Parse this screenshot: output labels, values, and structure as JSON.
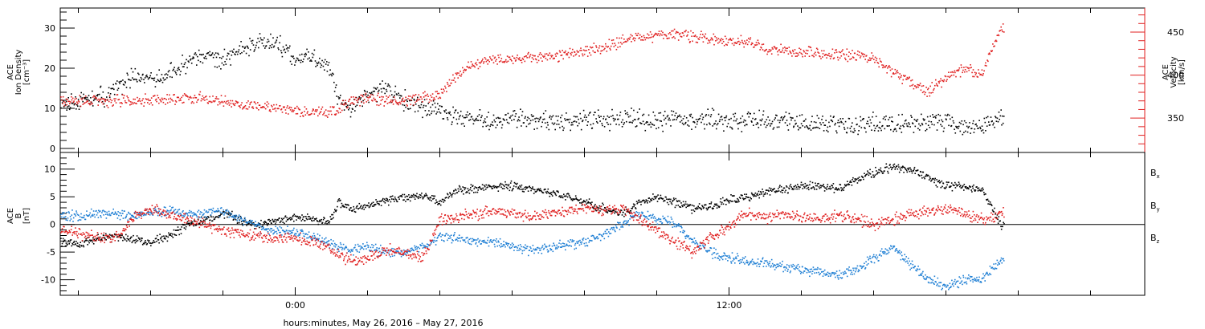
{
  "chart_data": [
    {
      "type": "scatter",
      "panel": "plasma",
      "left_axis": {
        "label_lines": [
          "ACE",
          "Ion Density",
          "[cm⁻³]"
        ],
        "ylim": [
          -1,
          35
        ],
        "ticks": [
          0,
          10,
          20,
          30
        ],
        "color": "#000000"
      },
      "right_axis": {
        "label_lines": [
          "ACE",
          "Velocity",
          "[km/s]"
        ],
        "ylim": [
          310,
          478
        ],
        "ticks": [
          350,
          400,
          450
        ],
        "color": "#e02020"
      },
      "series": [
        {
          "axis": "left",
          "color": "#000000",
          "points": [
            [
              -6.5,
              11
            ],
            [
              -6,
              12
            ],
            [
              -5.5,
              12.5
            ],
            [
              -5,
              15
            ],
            [
              -4.5,
              18
            ],
            [
              -4,
              17
            ],
            [
              -3.5,
              19
            ],
            [
              -3,
              21
            ],
            [
              -2.5,
              23
            ],
            [
              -2,
              22
            ],
            [
              -1.5,
              25
            ],
            [
              -1,
              27
            ],
            [
              -0.5,
              26
            ],
            [
              0,
              22
            ],
            [
              0.3,
              24
            ],
            [
              0.6,
              21
            ],
            [
              0.9,
              22
            ],
            [
              1.2,
              12
            ],
            [
              1.5,
              10
            ],
            [
              2,
              14
            ],
            [
              2.5,
              15
            ],
            [
              3,
              12
            ],
            [
              3.5,
              10
            ],
            [
              4,
              9
            ],
            [
              4.5,
              8
            ],
            [
              5,
              7
            ],
            [
              5.5,
              7
            ],
            [
              6,
              7.5
            ],
            [
              7,
              7
            ],
            [
              8,
              7
            ],
            [
              9,
              7.5
            ],
            [
              10,
              7
            ],
            [
              11,
              7.5
            ],
            [
              12,
              7
            ],
            [
              13,
              7
            ],
            [
              14,
              6.5
            ],
            [
              15,
              6
            ],
            [
              16,
              6.5
            ],
            [
              17,
              6
            ],
            [
              17.5,
              7
            ],
            [
              18,
              6.5
            ],
            [
              18.5,
              6
            ],
            [
              19,
              6
            ],
            [
              19.5,
              7
            ]
          ]
        },
        {
          "axis": "right",
          "color": "#e02020",
          "points": [
            [
              -6.5,
              370
            ],
            [
              -6,
              370
            ],
            [
              -5,
              371
            ],
            [
              -4,
              371
            ],
            [
              -3.5,
              372
            ],
            [
              -3,
              374
            ],
            [
              -2.5,
              374
            ],
            [
              -2,
              370
            ],
            [
              -1.5,
              366
            ],
            [
              -1,
              364
            ],
            [
              -0.5,
              362
            ],
            [
              0,
              360
            ],
            [
              0.5,
              358
            ],
            [
              0.9,
              357
            ],
            [
              1.2,
              362
            ],
            [
              1.5,
              370
            ],
            [
              2,
              373
            ],
            [
              2.5,
              372
            ],
            [
              3,
              370
            ],
            [
              3.5,
              374
            ],
            [
              4,
              378
            ],
            [
              4.5,
              402
            ],
            [
              5,
              415
            ],
            [
              5.5,
              418
            ],
            [
              6,
              420
            ],
            [
              6.5,
              420
            ],
            [
              7,
              422
            ],
            [
              7.5,
              425
            ],
            [
              8,
              428
            ],
            [
              8.5,
              432
            ],
            [
              9,
              440
            ],
            [
              9.5,
              445
            ],
            [
              10,
              447
            ],
            [
              10.5,
              448
            ],
            [
              11,
              445
            ],
            [
              11.5,
              443
            ],
            [
              12,
              440
            ],
            [
              12.5,
              438
            ],
            [
              13,
              432
            ],
            [
              14,
              428
            ],
            [
              15,
              425
            ],
            [
              16,
              420
            ],
            [
              16.5,
              405
            ],
            [
              17,
              393
            ],
            [
              17.5,
              382
            ],
            [
              18,
              398
            ],
            [
              18.5,
              408
            ],
            [
              19,
              402
            ],
            [
              19.5,
              455
            ]
          ]
        }
      ]
    },
    {
      "type": "scatter",
      "panel": "magnetic-field",
      "left_axis": {
        "label_lines": [
          "ACE",
          "B",
          "[nT]"
        ],
        "ylim": [
          -12.8,
          13
        ],
        "ticks": [
          -10,
          -5,
          0,
          5,
          10
        ],
        "color": "#000000"
      },
      "zero_line": true,
      "legend": [
        {
          "label": "B",
          "sub": "x",
          "color": "#000000"
        },
        {
          "label": "B",
          "sub": "y",
          "color": "#1f7fd4"
        },
        {
          "label": "B",
          "sub": "z",
          "color": "#e02020"
        }
      ],
      "series": [
        {
          "name": "Bx",
          "color": "#000000",
          "points": [
            [
              -6.5,
              -3
            ],
            [
              -6,
              -3.5
            ],
            [
              -5.5,
              -2.5
            ],
            [
              -5,
              -2
            ],
            [
              -4.5,
              -2.5
            ],
            [
              -4,
              -3
            ],
            [
              -3.5,
              -2
            ],
            [
              -3,
              0
            ],
            [
              -2.5,
              1
            ],
            [
              -2,
              2
            ],
            [
              -1.5,
              1
            ],
            [
              -1,
              0
            ],
            [
              -0.5,
              1
            ],
            [
              0,
              1.5
            ],
            [
              0.5,
              1
            ],
            [
              0.9,
              0.5
            ],
            [
              1.2,
              4
            ],
            [
              1.5,
              3
            ],
            [
              2,
              3.5
            ],
            [
              2.5,
              4.5
            ],
            [
              3,
              5
            ],
            [
              3.5,
              5.5
            ],
            [
              4,
              4
            ],
            [
              4.5,
              6.5
            ],
            [
              5,
              6.5
            ],
            [
              5.5,
              7
            ],
            [
              6,
              7
            ],
            [
              6.5,
              6.5
            ],
            [
              7,
              6
            ],
            [
              7.5,
              5
            ],
            [
              8,
              4
            ],
            [
              8.5,
              3
            ],
            [
              9,
              2
            ],
            [
              9.5,
              4
            ],
            [
              10,
              5
            ],
            [
              10.5,
              4
            ],
            [
              11,
              3
            ],
            [
              11.5,
              3.5
            ],
            [
              12,
              4.5
            ],
            [
              12.5,
              5
            ],
            [
              13,
              6
            ],
            [
              13.5,
              6.5
            ],
            [
              14,
              7
            ],
            [
              14.5,
              7
            ],
            [
              15,
              6.5
            ],
            [
              15.5,
              8
            ],
            [
              16,
              9.5
            ],
            [
              16.5,
              10.5
            ],
            [
              17,
              10
            ],
            [
              17.5,
              8.5
            ],
            [
              18,
              7
            ],
            [
              18.5,
              7
            ],
            [
              19,
              6.5
            ],
            [
              19.5,
              0
            ]
          ]
        },
        {
          "name": "By",
          "color": "#1f7fd4",
          "points": [
            [
              -6.5,
              2
            ],
            [
              -6,
              1.5
            ],
            [
              -5.5,
              2
            ],
            [
              -5,
              2
            ],
            [
              -4.5,
              1.5
            ],
            [
              -4,
              2.5
            ],
            [
              -3.5,
              2.5
            ],
            [
              -3,
              2
            ],
            [
              -2.5,
              2
            ],
            [
              -2,
              2.5
            ],
            [
              -1.5,
              1
            ],
            [
              -1,
              -0.5
            ],
            [
              -0.5,
              -1
            ],
            [
              0,
              -1.5
            ],
            [
              0.5,
              -2
            ],
            [
              0.9,
              -3
            ],
            [
              1.2,
              -4
            ],
            [
              1.5,
              -4.5
            ],
            [
              2,
              -4
            ],
            [
              2.5,
              -5
            ],
            [
              3,
              -5
            ],
            [
              3.5,
              -4
            ],
            [
              4,
              -2
            ],
            [
              4.5,
              -2.5
            ],
            [
              5,
              -3
            ],
            [
              5.5,
              -3
            ],
            [
              6,
              -4
            ],
            [
              6.5,
              -4.5
            ],
            [
              7,
              -4
            ],
            [
              7.5,
              -3.5
            ],
            [
              8,
              -3
            ],
            [
              8.5,
              -2
            ],
            [
              9,
              0
            ],
            [
              9.5,
              2
            ],
            [
              10,
              1
            ],
            [
              10.5,
              0.5
            ],
            [
              11,
              -3
            ],
            [
              11.5,
              -5
            ],
            [
              12,
              -6
            ],
            [
              12.5,
              -6.5
            ],
            [
              13,
              -7
            ],
            [
              13.5,
              -7.5
            ],
            [
              14,
              -8
            ],
            [
              14.5,
              -8.5
            ],
            [
              15,
              -9
            ],
            [
              15.5,
              -8
            ],
            [
              16,
              -6
            ],
            [
              16.5,
              -4
            ],
            [
              17,
              -7
            ],
            [
              17.5,
              -10
            ],
            [
              18,
              -11
            ],
            [
              18.5,
              -10
            ],
            [
              19,
              -9.5
            ],
            [
              19.5,
              -6.5
            ]
          ]
        },
        {
          "name": "Bz",
          "color": "#e02020",
          "points": [
            [
              -6.5,
              -1
            ],
            [
              -6,
              -1.5
            ],
            [
              -5.5,
              -2
            ],
            [
              -5,
              -2.5
            ],
            [
              -4.5,
              1
            ],
            [
              -4,
              3
            ],
            [
              -3.5,
              2
            ],
            [
              -3,
              1
            ],
            [
              -2.5,
              0
            ],
            [
              -2,
              -1
            ],
            [
              -1.5,
              -1.5
            ],
            [
              -1,
              -2
            ],
            [
              -0.5,
              -2.5
            ],
            [
              0,
              -2.5
            ],
            [
              0.5,
              -3
            ],
            [
              0.9,
              -4
            ],
            [
              1.2,
              -5.5
            ],
            [
              1.5,
              -6.5
            ],
            [
              2,
              -6
            ],
            [
              2.5,
              -4.5
            ],
            [
              3,
              -5
            ],
            [
              3.5,
              -6
            ],
            [
              4,
              1
            ],
            [
              4.5,
              1.5
            ],
            [
              5,
              2
            ],
            [
              5.5,
              2.5
            ],
            [
              6,
              2
            ],
            [
              6.5,
              1.5
            ],
            [
              7,
              2
            ],
            [
              7.5,
              2.5
            ],
            [
              8,
              3
            ],
            [
              8.5,
              2.5
            ],
            [
              9,
              3
            ],
            [
              9.5,
              1
            ],
            [
              10,
              -1
            ],
            [
              10.5,
              -3
            ],
            [
              11,
              -5
            ],
            [
              11.5,
              -2
            ],
            [
              12,
              0
            ],
            [
              12.5,
              2
            ],
            [
              13,
              1
            ],
            [
              13.5,
              2
            ],
            [
              14,
              1.5
            ],
            [
              14.5,
              1
            ],
            [
              15,
              2
            ],
            [
              15.5,
              1
            ],
            [
              16,
              0
            ],
            [
              16.5,
              1
            ],
            [
              17,
              2
            ],
            [
              17.5,
              2.5
            ],
            [
              18,
              3
            ],
            [
              18.5,
              2
            ],
            [
              19,
              1
            ],
            [
              19.5,
              2
            ]
          ]
        }
      ]
    }
  ],
  "x_axis": {
    "xlim": [
      -6.5,
      23.5
    ],
    "tick_labels": [
      {
        "x": 0,
        "text": "0:00"
      },
      {
        "x": 12,
        "text": "12:00"
      }
    ],
    "minor_step": 2,
    "title": "hours:minutes, May 26, 2016 – May 27, 2016"
  }
}
